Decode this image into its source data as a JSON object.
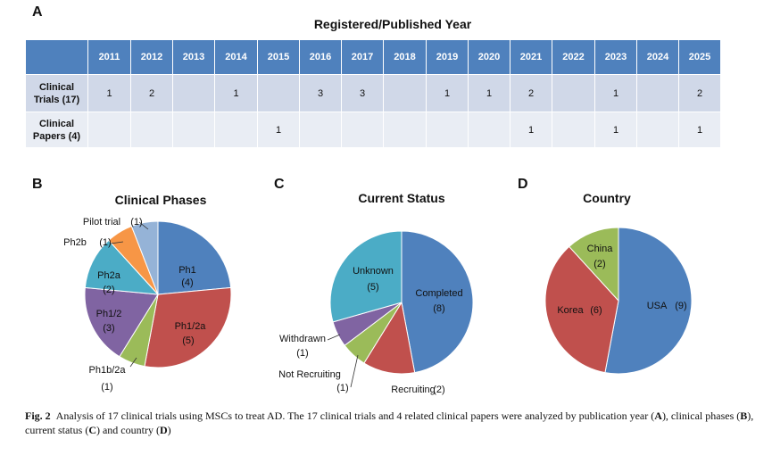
{
  "panels": {
    "a": "A",
    "b": "B",
    "c": "C",
    "d": "D"
  },
  "chart_data": [
    {
      "type": "table",
      "title": "Registered/Published Year",
      "columns": [
        "2011",
        "2012",
        "2013",
        "2014",
        "2015",
        "2016",
        "2017",
        "2018",
        "2019",
        "2020",
        "2021",
        "2022",
        "2023",
        "2024",
        "2025"
      ],
      "rows": [
        {
          "label_line1": "Clinical",
          "label_line2": "Trials (17)",
          "values": [
            "1",
            "2",
            "",
            "1",
            "",
            "3",
            "3",
            "",
            "1",
            "1",
            "2",
            "",
            "1",
            "",
            "2"
          ]
        },
        {
          "label_line1": "Clinical",
          "label_line2": "Papers (4)",
          "values": [
            "",
            "",
            "",
            "",
            "1",
            "",
            "",
            "",
            "",
            "",
            "1",
            "",
            "1",
            "",
            "1"
          ]
        }
      ]
    },
    {
      "type": "pie",
      "title": "Clinical Phases",
      "slices": [
        {
          "label": "Ph1",
          "count": "(4)",
          "value": 4,
          "color": "#4f81bd"
        },
        {
          "label": "Ph1/2a",
          "count": "(5)",
          "value": 5,
          "color": "#c0504d"
        },
        {
          "label": "Ph1b/2a",
          "count": "(1)",
          "value": 1,
          "color": "#9bbb59"
        },
        {
          "label": "Ph1/2",
          "count": "(3)",
          "value": 3,
          "color": "#8064a2"
        },
        {
          "label": "Ph2a",
          "count": "(2)",
          "value": 2,
          "color": "#4bacc6"
        },
        {
          "label": "Ph2b",
          "count": "(1)",
          "value": 1,
          "color": "#f79646"
        },
        {
          "label": "Pilot trial",
          "count": "(1)",
          "value": 1,
          "color": "#95b3d7"
        }
      ]
    },
    {
      "type": "pie",
      "title": "Current Status",
      "slices": [
        {
          "label": "Completed",
          "count": "(8)",
          "value": 8,
          "color": "#4f81bd"
        },
        {
          "label": "Recruiting",
          "count": "(2)",
          "value": 2,
          "color": "#c0504d"
        },
        {
          "label": "Not Recruiting",
          "count": "(1)",
          "value": 1,
          "color": "#9bbb59"
        },
        {
          "label": "Withdrawn",
          "count": "(1)",
          "value": 1,
          "color": "#8064a2"
        },
        {
          "label": "Unknown",
          "count": "(5)",
          "value": 5,
          "color": "#4bacc6"
        }
      ]
    },
    {
      "type": "pie",
      "title": "Country",
      "slices": [
        {
          "label": "USA",
          "count": "(9)",
          "value": 9,
          "color": "#4f81bd"
        },
        {
          "label": "Korea",
          "count": "(6)",
          "value": 6,
          "color": "#c0504d"
        },
        {
          "label": "China",
          "count": "(2)",
          "value": 2,
          "color": "#9bbb59"
        }
      ]
    }
  ],
  "caption": {
    "fig": "Fig. 2",
    "text": "Analysis of 17 clinical trials using MSCs to treat AD. The 17 clinical trials and 4 related clinical papers were analyzed by publication year (",
    "a": "A",
    "t2": "), clinical phases (",
    "b": "B",
    "t3": "), current status (",
    "c": "C",
    "t4": ") and country (",
    "d": "D",
    "t5": ")"
  }
}
